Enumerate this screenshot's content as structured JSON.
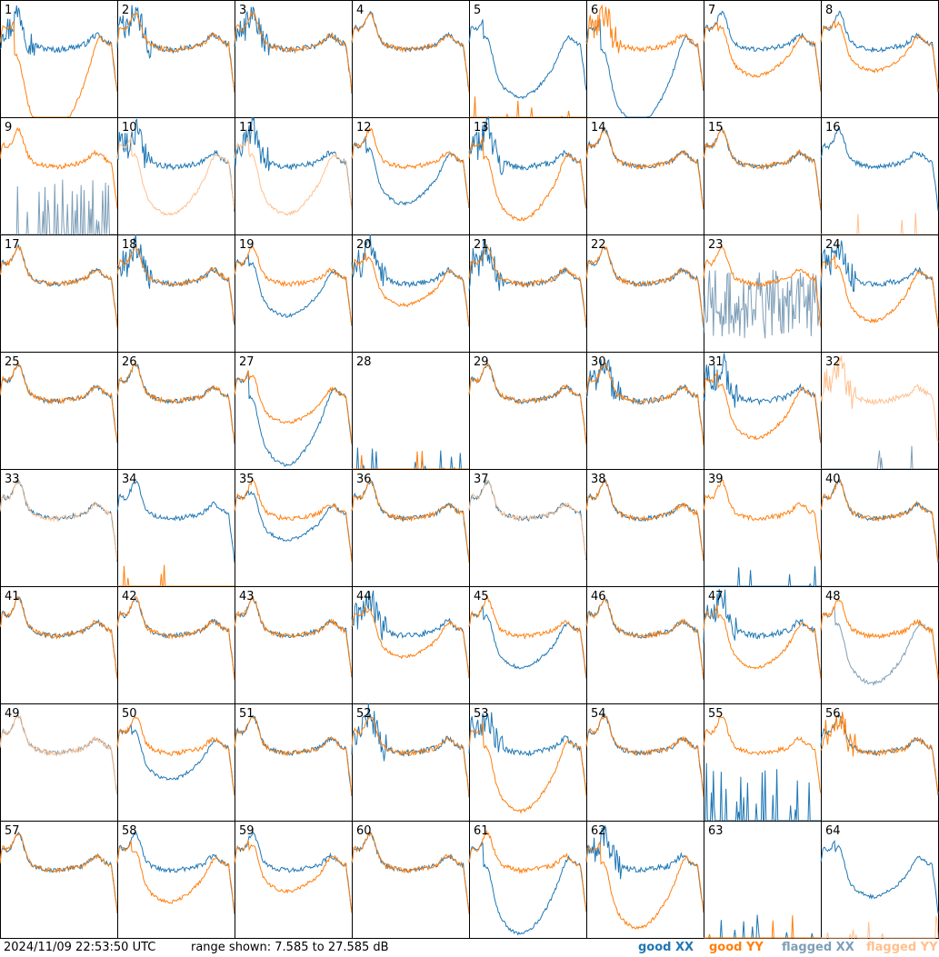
{
  "footer": {
    "timestamp": "2024/11/09 22:53:50 UTC",
    "range_text": "range shown: 7.585 to 27.585 dB"
  },
  "legend": [
    {
      "key": "good_xx",
      "label": "good XX",
      "color": "#1f77b4"
    },
    {
      "key": "good_yy",
      "label": "good YY",
      "color": "#ff7f0e"
    },
    {
      "key": "flagged_xx",
      "label": "flagged XX",
      "color": "#7f9fb8"
    },
    {
      "key": "flagged_yy",
      "label": "flagged YY",
      "color": "#ffc08f"
    }
  ],
  "chart_data": {
    "type": "line",
    "layout": "small-multiples 8x8",
    "title": "",
    "ylim_db": [
      7.585,
      27.585
    ],
    "panels": [
      {
        "id": "1",
        "xx": {
          "s": "good",
          "p": "ripple"
        },
        "yy": {
          "s": "good",
          "p": "sag",
          "depth": 0.8
        }
      },
      {
        "id": "2",
        "xx": {
          "s": "good",
          "p": "ripple"
        },
        "yy": {
          "s": "good",
          "p": "flat"
        }
      },
      {
        "id": "3",
        "xx": {
          "s": "good",
          "p": "ripple"
        },
        "yy": {
          "s": "good",
          "p": "flat"
        }
      },
      {
        "id": "4",
        "xx": {
          "s": "good",
          "p": "flat"
        },
        "yy": {
          "s": "good",
          "p": "flat"
        }
      },
      {
        "id": "5",
        "xx": {
          "s": "good",
          "p": "sag",
          "depth": 0.45
        },
        "yy": {
          "s": "good",
          "p": "dead"
        }
      },
      {
        "id": "6",
        "xx": {
          "s": "good",
          "p": "sag",
          "depth": 0.7
        },
        "yy": {
          "s": "good",
          "p": "ripple"
        }
      },
      {
        "id": "7",
        "xx": {
          "s": "good",
          "p": "flat"
        },
        "yy": {
          "s": "good",
          "p": "sag",
          "depth": 0.25
        }
      },
      {
        "id": "8",
        "xx": {
          "s": "good",
          "p": "flat"
        },
        "yy": {
          "s": "good",
          "p": "sag",
          "depth": 0.2
        }
      },
      {
        "id": "9",
        "xx": {
          "s": "flagged",
          "p": "spikes"
        },
        "yy": {
          "s": "good",
          "p": "flat"
        }
      },
      {
        "id": "10",
        "xx": {
          "s": "good",
          "p": "ripple"
        },
        "yy": {
          "s": "flagged",
          "p": "sag",
          "depth": 0.45
        }
      },
      {
        "id": "11",
        "xx": {
          "s": "good",
          "p": "ripple"
        },
        "yy": {
          "s": "flagged",
          "p": "sag",
          "depth": 0.45
        }
      },
      {
        "id": "12",
        "xx": {
          "s": "good",
          "p": "sag",
          "depth": 0.35
        },
        "yy": {
          "s": "good",
          "p": "flat"
        }
      },
      {
        "id": "13",
        "xx": {
          "s": "good",
          "p": "ripple"
        },
        "yy": {
          "s": "good",
          "p": "sag",
          "depth": 0.5
        }
      },
      {
        "id": "14",
        "xx": {
          "s": "good",
          "p": "flat"
        },
        "yy": {
          "s": "good",
          "p": "flat"
        }
      },
      {
        "id": "15",
        "xx": {
          "s": "good",
          "p": "flat"
        },
        "yy": {
          "s": "good",
          "p": "flat"
        }
      },
      {
        "id": "16",
        "xx": {
          "s": "good",
          "p": "flat"
        },
        "yy": {
          "s": "flagged",
          "p": "dead"
        }
      },
      {
        "id": "17",
        "xx": {
          "s": "good",
          "p": "flat"
        },
        "yy": {
          "s": "good",
          "p": "flat"
        }
      },
      {
        "id": "18",
        "xx": {
          "s": "good",
          "p": "ripple"
        },
        "yy": {
          "s": "good",
          "p": "flat"
        }
      },
      {
        "id": "19",
        "xx": {
          "s": "good",
          "p": "sag",
          "depth": 0.3
        },
        "yy": {
          "s": "good",
          "p": "flat"
        }
      },
      {
        "id": "20",
        "xx": {
          "s": "good",
          "p": "ripple"
        },
        "yy": {
          "s": "good",
          "p": "sag",
          "depth": 0.2
        }
      },
      {
        "id": "21",
        "xx": {
          "s": "good",
          "p": "ripple"
        },
        "yy": {
          "s": "good",
          "p": "flat"
        }
      },
      {
        "id": "22",
        "xx": {
          "s": "good",
          "p": "flat"
        },
        "yy": {
          "s": "good",
          "p": "flat"
        }
      },
      {
        "id": "23",
        "xx": {
          "s": "flagged",
          "p": "noise"
        },
        "yy": {
          "s": "good",
          "p": "flat"
        }
      },
      {
        "id": "24",
        "xx": {
          "s": "good",
          "p": "ripple"
        },
        "yy": {
          "s": "good",
          "p": "sag",
          "depth": 0.35
        }
      },
      {
        "id": "25",
        "xx": {
          "s": "good",
          "p": "flat"
        },
        "yy": {
          "s": "good",
          "p": "flat"
        }
      },
      {
        "id": "26",
        "xx": {
          "s": "good",
          "p": "flat"
        },
        "yy": {
          "s": "good",
          "p": "flat"
        }
      },
      {
        "id": "27",
        "xx": {
          "s": "good",
          "p": "sag",
          "depth": 0.6
        },
        "yy": {
          "s": "good",
          "p": "sag",
          "depth": 0.2
        }
      },
      {
        "id": "28",
        "xx": {
          "s": "good",
          "p": "dead"
        },
        "yy": {
          "s": "good",
          "p": "dead"
        }
      },
      {
        "id": "29",
        "xx": {
          "s": "good",
          "p": "flat"
        },
        "yy": {
          "s": "good",
          "p": "flat"
        }
      },
      {
        "id": "30",
        "xx": {
          "s": "good",
          "p": "ripple"
        },
        "yy": {
          "s": "good",
          "p": "flat"
        }
      },
      {
        "id": "31",
        "xx": {
          "s": "good",
          "p": "ripple"
        },
        "yy": {
          "s": "good",
          "p": "sag",
          "depth": 0.35
        }
      },
      {
        "id": "32",
        "xx": {
          "s": "flagged",
          "p": "dead"
        },
        "yy": {
          "s": "flagged",
          "p": "ripple"
        }
      },
      {
        "id": "33",
        "xx": {
          "s": "good",
          "p": "flat"
        },
        "yy": {
          "s": "flagged",
          "p": "flat"
        }
      },
      {
        "id": "34",
        "xx": {
          "s": "good",
          "p": "flat"
        },
        "yy": {
          "s": "good",
          "p": "dead"
        }
      },
      {
        "id": "35",
        "xx": {
          "s": "good",
          "p": "sag",
          "depth": 0.2
        },
        "yy": {
          "s": "good",
          "p": "flat"
        }
      },
      {
        "id": "36",
        "xx": {
          "s": "good",
          "p": "flat"
        },
        "yy": {
          "s": "good",
          "p": "flat"
        }
      },
      {
        "id": "37",
        "xx": {
          "s": "good",
          "p": "flat"
        },
        "yy": {
          "s": "flagged",
          "p": "flat"
        }
      },
      {
        "id": "38",
        "xx": {
          "s": "good",
          "p": "flat"
        },
        "yy": {
          "s": "good",
          "p": "flat"
        }
      },
      {
        "id": "39",
        "xx": {
          "s": "good",
          "p": "dead"
        },
        "yy": {
          "s": "good",
          "p": "flat"
        }
      },
      {
        "id": "40",
        "xx": {
          "s": "good",
          "p": "flat"
        },
        "yy": {
          "s": "good",
          "p": "flat"
        }
      },
      {
        "id": "41",
        "xx": {
          "s": "good",
          "p": "flat"
        },
        "yy": {
          "s": "good",
          "p": "flat"
        }
      },
      {
        "id": "42",
        "xx": {
          "s": "good",
          "p": "flat"
        },
        "yy": {
          "s": "good",
          "p": "flat"
        }
      },
      {
        "id": "43",
        "xx": {
          "s": "good",
          "p": "flat"
        },
        "yy": {
          "s": "good",
          "p": "flat"
        }
      },
      {
        "id": "44",
        "xx": {
          "s": "good",
          "p": "ripple"
        },
        "yy": {
          "s": "good",
          "p": "sag",
          "depth": 0.2
        }
      },
      {
        "id": "45",
        "xx": {
          "s": "good",
          "p": "sag",
          "depth": 0.3
        },
        "yy": {
          "s": "good",
          "p": "flat"
        }
      },
      {
        "id": "46",
        "xx": {
          "s": "good",
          "p": "flat"
        },
        "yy": {
          "s": "good",
          "p": "flat"
        }
      },
      {
        "id": "47",
        "xx": {
          "s": "good",
          "p": "ripple"
        },
        "yy": {
          "s": "good",
          "p": "sag",
          "depth": 0.3
        }
      },
      {
        "id": "48",
        "xx": {
          "s": "flagged",
          "p": "sag",
          "depth": 0.45
        },
        "yy": {
          "s": "good",
          "p": "flat"
        }
      },
      {
        "id": "49",
        "xx": {
          "s": "flagged",
          "p": "flat"
        },
        "yy": {
          "s": "flagged",
          "p": "flat"
        }
      },
      {
        "id": "50",
        "xx": {
          "s": "good",
          "p": "sag",
          "depth": 0.25
        },
        "yy": {
          "s": "good",
          "p": "flat"
        }
      },
      {
        "id": "51",
        "xx": {
          "s": "good",
          "p": "flat"
        },
        "yy": {
          "s": "good",
          "p": "flat"
        }
      },
      {
        "id": "52",
        "xx": {
          "s": "good",
          "p": "ripple"
        },
        "yy": {
          "s": "good",
          "p": "flat"
        }
      },
      {
        "id": "53",
        "xx": {
          "s": "good",
          "p": "ripple"
        },
        "yy": {
          "s": "good",
          "p": "sag",
          "depth": 0.55
        }
      },
      {
        "id": "54",
        "xx": {
          "s": "good",
          "p": "flat"
        },
        "yy": {
          "s": "good",
          "p": "flat"
        }
      },
      {
        "id": "55",
        "xx": {
          "s": "good",
          "p": "spikes"
        },
        "yy": {
          "s": "good",
          "p": "flat"
        }
      },
      {
        "id": "56",
        "xx": {
          "s": "good",
          "p": "flat"
        },
        "yy": {
          "s": "good",
          "p": "ripple"
        }
      },
      {
        "id": "57",
        "xx": {
          "s": "good",
          "p": "flat"
        },
        "yy": {
          "s": "good",
          "p": "flat"
        }
      },
      {
        "id": "58",
        "xx": {
          "s": "good",
          "p": "flat"
        },
        "yy": {
          "s": "good",
          "p": "sag",
          "depth": 0.3
        }
      },
      {
        "id": "59",
        "xx": {
          "s": "good",
          "p": "flat"
        },
        "yy": {
          "s": "good",
          "p": "sag",
          "depth": 0.2
        }
      },
      {
        "id": "60",
        "xx": {
          "s": "good",
          "p": "flat"
        },
        "yy": {
          "s": "good",
          "p": "flat"
        }
      },
      {
        "id": "61",
        "xx": {
          "s": "good",
          "p": "sag",
          "depth": 0.6
        },
        "yy": {
          "s": "good",
          "p": "flat"
        }
      },
      {
        "id": "62",
        "xx": {
          "s": "good",
          "p": "ripple"
        },
        "yy": {
          "s": "good",
          "p": "sag",
          "depth": 0.55
        }
      },
      {
        "id": "63",
        "xx": {
          "s": "good",
          "p": "dead"
        },
        "yy": {
          "s": "good",
          "p": "dead"
        }
      },
      {
        "id": "64",
        "xx": {
          "s": "good",
          "p": "sag",
          "depth": 0.25
        },
        "yy": {
          "s": "flagged",
          "p": "dead"
        }
      }
    ]
  }
}
